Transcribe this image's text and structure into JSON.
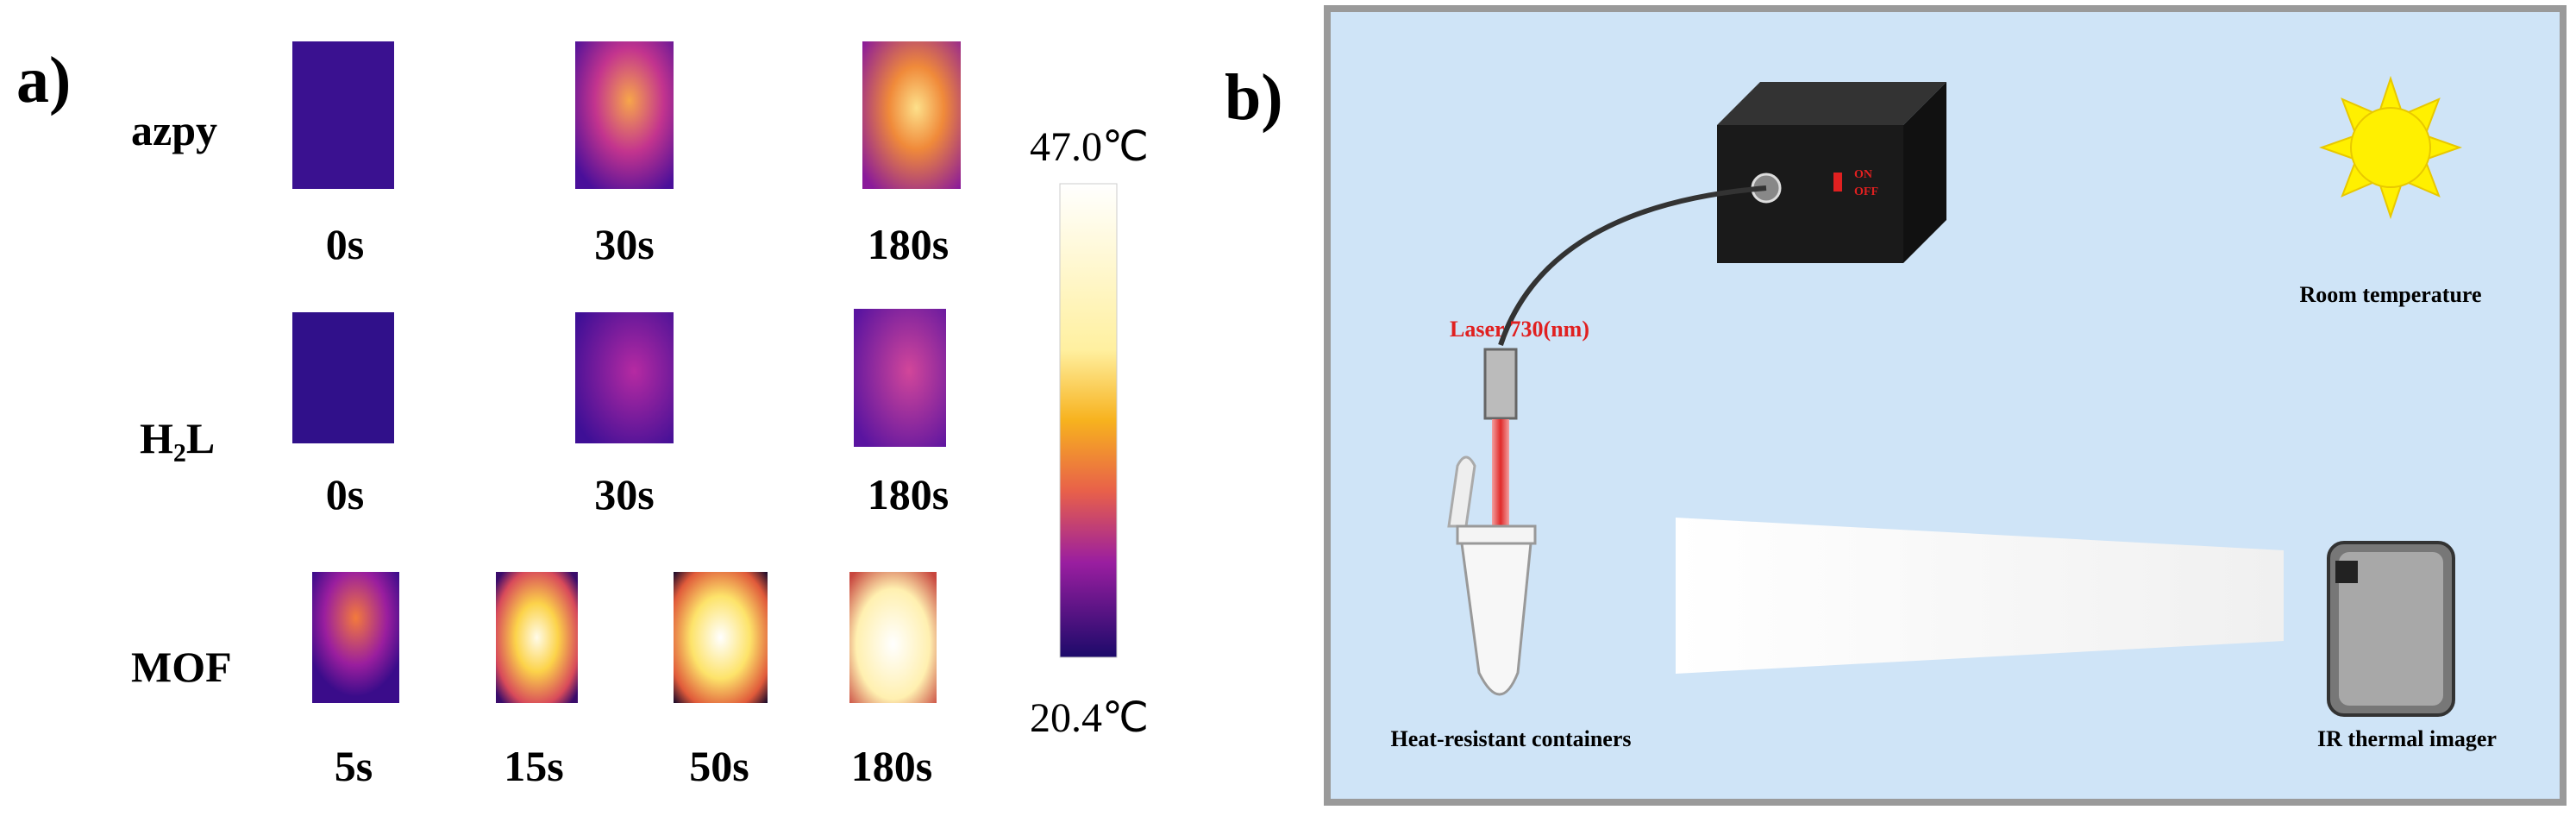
{
  "panel_a": {
    "label": "a)",
    "rows": [
      {
        "name": "azpy",
        "times": [
          "0s",
          "30s",
          "180s"
        ]
      },
      {
        "name": "H₂L",
        "times": [
          "0s",
          "30s",
          "180s"
        ]
      },
      {
        "name": "MOF",
        "times": [
          "5s",
          "15s",
          "50s",
          "180s"
        ]
      }
    ],
    "colorbar": {
      "max": "47.0℃",
      "min": "20.4℃"
    }
  },
  "panel_b": {
    "label": "b)",
    "switch_on": "ON",
    "switch_off": "OFF",
    "laser": "Laser 730(nm)",
    "room": "Room temperature",
    "container": "Heat-resistant containers",
    "imager": "IR thermal imager"
  }
}
